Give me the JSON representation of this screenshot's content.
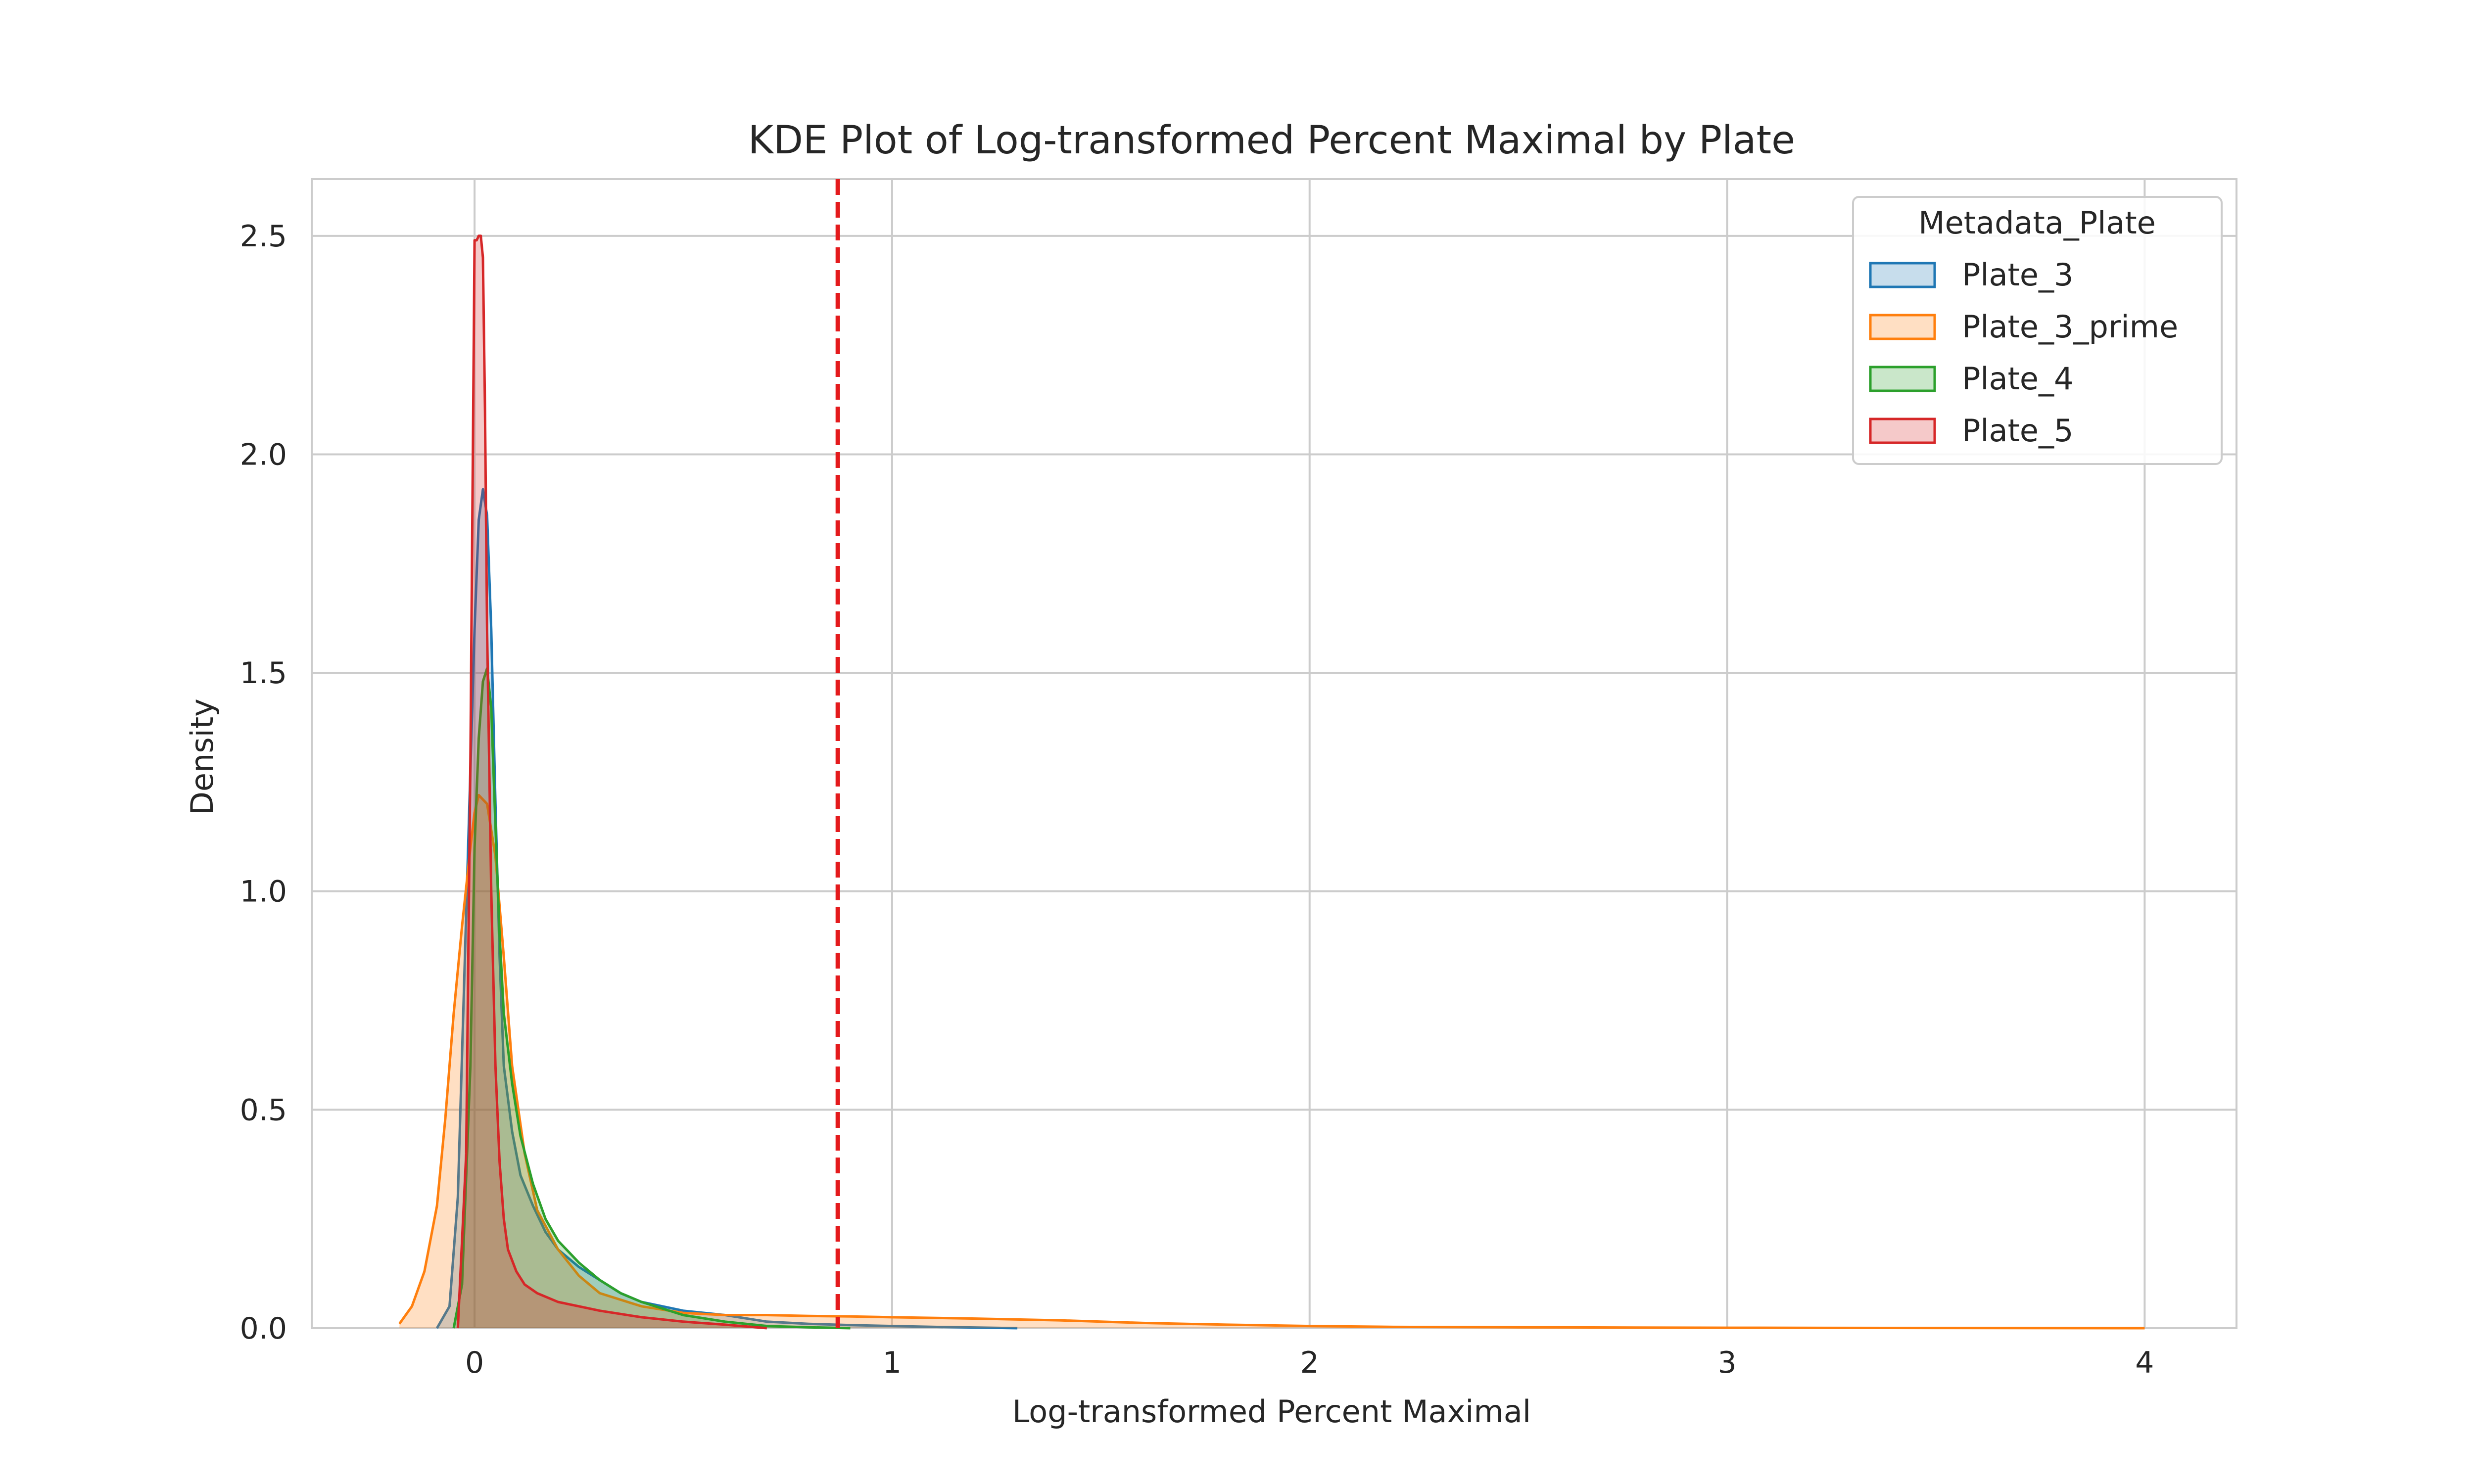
{
  "chart_data": {
    "type": "area",
    "title": "KDE Plot of Log-transformed Percent Maximal by Plate",
    "xlabel": "Log-transformed Percent Maximal",
    "ylabel": "Density",
    "xlim": [
      -0.39,
      4.22
    ],
    "ylim": [
      0,
      2.63
    ],
    "xticks": [
      0,
      1,
      2,
      3,
      4
    ],
    "xtick_labels": [
      "0",
      "1",
      "2",
      "3",
      "4"
    ],
    "yticks": [
      0.0,
      0.5,
      1.0,
      1.5,
      2.0,
      2.5
    ],
    "ytick_labels": [
      "0.0",
      "0.5",
      "1.0",
      "1.5",
      "2.0",
      "2.5"
    ],
    "grid": true,
    "legend": {
      "title": "Metadata_Plate",
      "placement": "upper right"
    },
    "reference_line": {
      "orientation": "vertical",
      "x": 0.87,
      "style": "dashed",
      "color": "#e41a1c"
    },
    "series": [
      {
        "name": "Plate_3",
        "color": "#1f77b4",
        "x": [
          -0.09,
          -0.06,
          -0.04,
          -0.02,
          0.0,
          0.01,
          0.02,
          0.03,
          0.04,
          0.05,
          0.06,
          0.07,
          0.09,
          0.11,
          0.14,
          0.17,
          0.2,
          0.25,
          0.3,
          0.35,
          0.4,
          0.45,
          0.5,
          0.6,
          0.7,
          0.8,
          0.9,
          1.0,
          1.1,
          1.3
        ],
        "y": [
          0.0,
          0.05,
          0.3,
          0.95,
          1.6,
          1.85,
          1.92,
          1.86,
          1.6,
          1.2,
          0.85,
          0.6,
          0.45,
          0.35,
          0.28,
          0.22,
          0.18,
          0.14,
          0.11,
          0.08,
          0.06,
          0.05,
          0.04,
          0.03,
          0.015,
          0.01,
          0.007,
          0.005,
          0.003,
          0.0
        ]
      },
      {
        "name": "Plate_3_prime",
        "color": "#ff7f0e",
        "x": [
          -0.18,
          -0.15,
          -0.12,
          -0.09,
          -0.07,
          -0.05,
          -0.03,
          -0.01,
          0.0,
          0.01,
          0.03,
          0.05,
          0.07,
          0.09,
          0.12,
          0.15,
          0.2,
          0.25,
          0.3,
          0.4,
          0.5,
          0.6,
          0.7,
          0.8,
          0.9,
          1.0,
          1.2,
          1.4,
          1.6,
          1.8,
          2.0,
          2.2,
          2.5,
          3.0,
          3.5,
          4.0
        ],
        "y": [
          0.01,
          0.05,
          0.13,
          0.28,
          0.48,
          0.72,
          0.92,
          1.1,
          1.18,
          1.22,
          1.2,
          1.08,
          0.85,
          0.6,
          0.4,
          0.27,
          0.18,
          0.12,
          0.08,
          0.05,
          0.035,
          0.03,
          0.03,
          0.028,
          0.027,
          0.025,
          0.022,
          0.018,
          0.012,
          0.008,
          0.005,
          0.003,
          0.002,
          0.001,
          0.0005,
          0.0
        ]
      },
      {
        "name": "Plate_4",
        "color": "#2ca02c",
        "x": [
          -0.05,
          -0.03,
          -0.01,
          0.0,
          0.01,
          0.02,
          0.03,
          0.04,
          0.05,
          0.06,
          0.07,
          0.09,
          0.11,
          0.14,
          0.17,
          0.2,
          0.25,
          0.3,
          0.35,
          0.4,
          0.5,
          0.6,
          0.7,
          0.8,
          0.9
        ],
        "y": [
          0.0,
          0.1,
          0.6,
          1.1,
          1.35,
          1.48,
          1.51,
          1.42,
          1.15,
          0.9,
          0.72,
          0.56,
          0.44,
          0.33,
          0.25,
          0.2,
          0.15,
          0.11,
          0.08,
          0.06,
          0.03,
          0.015,
          0.005,
          0.002,
          0.0
        ]
      },
      {
        "name": "Plate_5",
        "color": "#d62728",
        "x": [
          -0.04,
          -0.02,
          -0.01,
          0.0,
          0.005,
          0.01,
          0.015,
          0.02,
          0.025,
          0.03,
          0.04,
          0.05,
          0.06,
          0.07,
          0.08,
          0.1,
          0.12,
          0.15,
          0.2,
          0.25,
          0.3,
          0.4,
          0.5,
          0.6,
          0.7
        ],
        "y": [
          0.0,
          0.4,
          1.3,
          2.49,
          2.49,
          2.5,
          2.5,
          2.45,
          2.1,
          1.6,
          1.0,
          0.6,
          0.38,
          0.25,
          0.18,
          0.13,
          0.1,
          0.08,
          0.06,
          0.05,
          0.04,
          0.025,
          0.015,
          0.008,
          0.0
        ]
      }
    ]
  }
}
